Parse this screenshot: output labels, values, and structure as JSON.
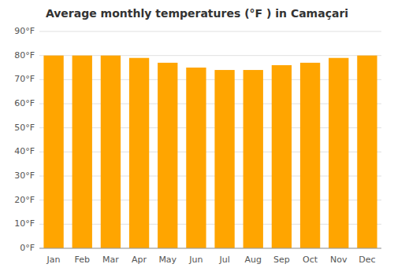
{
  "chart_data": {
    "type": "bar",
    "title": "Average monthly temperatures (°F ) in Camaçari",
    "categories": [
      "Jan",
      "Feb",
      "Mar",
      "Apr",
      "May",
      "Jun",
      "Jul",
      "Aug",
      "Sep",
      "Oct",
      "Nov",
      "Dec"
    ],
    "values": [
      80,
      80,
      80,
      79,
      77,
      75,
      74,
      74,
      76,
      77,
      79,
      80
    ],
    "color": "#FFA500",
    "ylim": [
      0,
      90
    ],
    "yticks": [
      {
        "value": 0,
        "label": "0°F"
      },
      {
        "value": 10,
        "label": "10°F"
      },
      {
        "value": 20,
        "label": "20°F"
      },
      {
        "value": 30,
        "label": "30°F"
      },
      {
        "value": 40,
        "label": "40°F"
      },
      {
        "value": 50,
        "label": "50°F"
      },
      {
        "value": 60,
        "label": "60°F"
      },
      {
        "value": 70,
        "label": "70°F"
      },
      {
        "value": 80,
        "label": "80°F"
      },
      {
        "value": 90,
        "label": "90°F"
      }
    ],
    "grid": true
  }
}
